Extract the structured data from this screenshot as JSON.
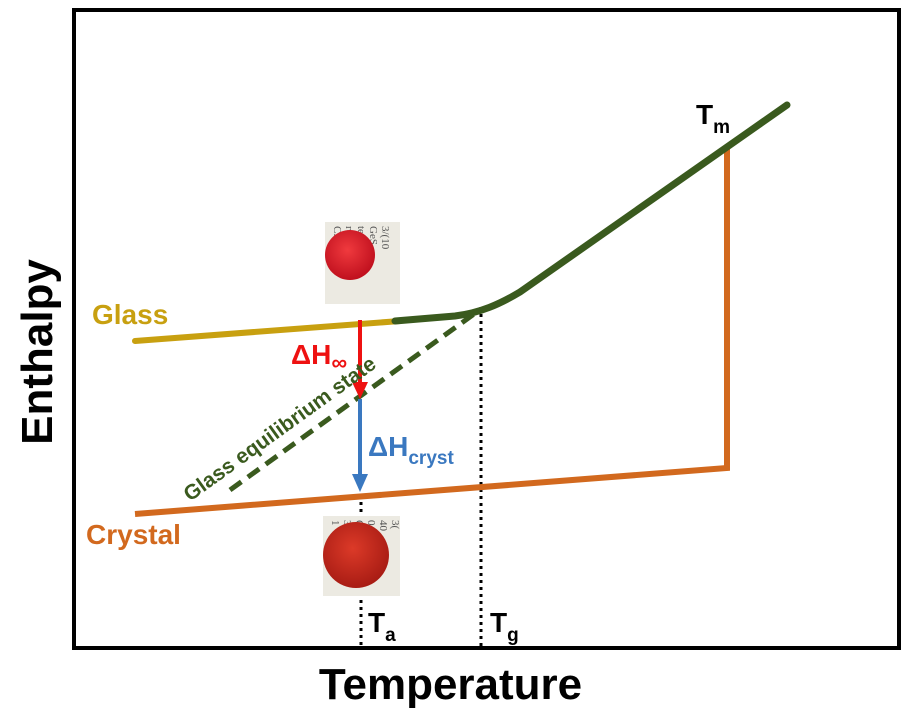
{
  "axes": {
    "xlabel": "Temperature",
    "ylabel": "Enthalpy"
  },
  "curves": {
    "glass_label": "Glass",
    "crystal_label": "Crystal",
    "equilibrium_label": "Glass equilibrium state"
  },
  "markers": {
    "tm": {
      "main": "T",
      "sub": "m"
    },
    "tg": {
      "main": "T",
      "sub": "g"
    },
    "ta": {
      "main": "T",
      "sub": "a"
    }
  },
  "arrows": {
    "relaxation": {
      "main": "ΔH",
      "sub": "∞"
    },
    "crystallization": {
      "main": "ΔH",
      "sub": "cryst"
    }
  },
  "photos": {
    "glass_text": [
      "3/(10",
      "GeS",
      "tei",
      "rum o",
      "Cs"
    ],
    "crystal_text": [
      "3(",
      "40",
      "0,",
      "C",
      "3/(0",
      "1"
    ]
  },
  "colors": {
    "glass": "#c8a010",
    "crystal": "#d2691e",
    "liquid": "#3a5a1e",
    "relax_arrow": "#ee1111",
    "cryst_arrow": "#3a78c0",
    "sample_glass": "#d81e2a",
    "sample_crystal": "#c8281c"
  }
}
